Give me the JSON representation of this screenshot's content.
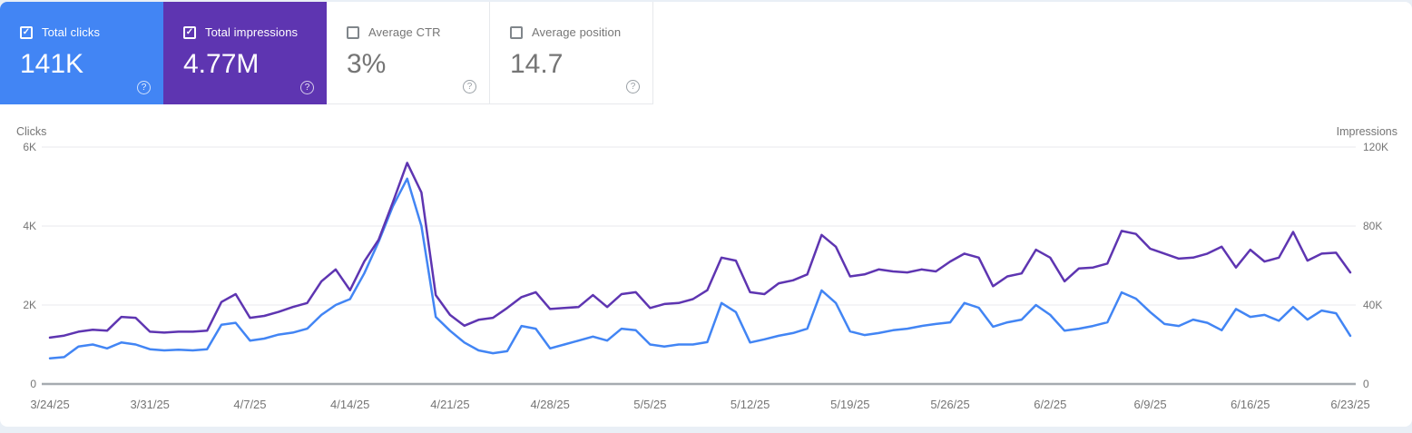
{
  "ui": {
    "help_glyph": "?",
    "check_glyph": "✓"
  },
  "page": {
    "background": "#e9eff6",
    "panel_background": "#ffffff"
  },
  "metric_cards": [
    {
      "id": "total-clicks",
      "label": "Total clicks",
      "value": "141K",
      "checked": true,
      "background": "#4285f4",
      "text_color": "#ffffff"
    },
    {
      "id": "total-impressions",
      "label": "Total impressions",
      "value": "4.77M",
      "checked": true,
      "background": "#5e35b1",
      "text_color": "#ffffff"
    },
    {
      "id": "average-ctr",
      "label": "Average CTR",
      "value": "3%",
      "checked": false,
      "background": "#ffffff",
      "text_color": "#757575"
    },
    {
      "id": "average-position",
      "label": "Average position",
      "value": "14.7",
      "checked": false,
      "background": "#ffffff",
      "text_color": "#757575"
    }
  ],
  "chart_data": {
    "type": "line",
    "grid": "horizontal",
    "grid_color": "#e8eaed",
    "axis_color": "#a6abb0",
    "tick_color": "#757575",
    "left_axis": {
      "label": "Clicks",
      "ticks": [
        "0",
        "2K",
        "4K",
        "6K"
      ],
      "max": 6000
    },
    "right_axis": {
      "label": "Impressions",
      "ticks": [
        "0",
        "40K",
        "80K",
        "120K"
      ],
      "max": 120000
    },
    "x_tick_every": 7,
    "x_tick_labels": [
      "3/24/25",
      "3/31/25",
      "4/7/25",
      "4/14/25",
      "4/21/25",
      "4/28/25",
      "5/5/25",
      "5/12/25",
      "5/19/25",
      "5/26/25",
      "6/2/25",
      "6/9/25",
      "6/16/25",
      "6/23/25"
    ],
    "x": [
      "3/24/25",
      "3/25/25",
      "3/26/25",
      "3/27/25",
      "3/28/25",
      "3/29/25",
      "3/30/25",
      "3/31/25",
      "4/1/25",
      "4/2/25",
      "4/3/25",
      "4/4/25",
      "4/5/25",
      "4/6/25",
      "4/7/25",
      "4/8/25",
      "4/9/25",
      "4/10/25",
      "4/11/25",
      "4/12/25",
      "4/13/25",
      "4/14/25",
      "4/15/25",
      "4/16/25",
      "4/17/25",
      "4/18/25",
      "4/19/25",
      "4/20/25",
      "4/21/25",
      "4/22/25",
      "4/23/25",
      "4/24/25",
      "4/25/25",
      "4/26/25",
      "4/27/25",
      "4/28/25",
      "4/29/25",
      "4/30/25",
      "5/1/25",
      "5/2/25",
      "5/3/25",
      "5/4/25",
      "5/5/25",
      "5/6/25",
      "5/7/25",
      "5/8/25",
      "5/9/25",
      "5/10/25",
      "5/11/25",
      "5/12/25",
      "5/13/25",
      "5/14/25",
      "5/15/25",
      "5/16/25",
      "5/17/25",
      "5/18/25",
      "5/19/25",
      "5/20/25",
      "5/21/25",
      "5/22/25",
      "5/23/25",
      "5/24/25",
      "5/25/25",
      "5/26/25",
      "5/27/25",
      "5/28/25",
      "5/29/25",
      "5/30/25",
      "5/31/25",
      "6/1/25",
      "6/2/25",
      "6/3/25",
      "6/4/25",
      "6/5/25",
      "6/6/25",
      "6/7/25",
      "6/8/25",
      "6/9/25",
      "6/10/25",
      "6/11/25",
      "6/12/25",
      "6/13/25",
      "6/14/25",
      "6/15/25",
      "6/16/25",
      "6/17/25",
      "6/18/25",
      "6/19/25",
      "6/20/25",
      "6/21/25",
      "6/22/25",
      "6/23/25"
    ],
    "series": [
      {
        "name": "Clicks",
        "axis": "left",
        "color": "#4285f4",
        "values": [
          650,
          680,
          950,
          1000,
          900,
          1050,
          1000,
          880,
          850,
          870,
          850,
          880,
          1500,
          1550,
          1100,
          1150,
          1250,
          1300,
          1400,
          1750,
          2000,
          2150,
          2800,
          3600,
          4500,
          5200,
          4000,
          1700,
          1350,
          1050,
          850,
          780,
          830,
          1470,
          1400,
          900,
          1000,
          1100,
          1200,
          1100,
          1400,
          1360,
          1000,
          950,
          1000,
          1000,
          1060,
          2050,
          1820,
          1050,
          1130,
          1220,
          1290,
          1400,
          2370,
          2050,
          1330,
          1240,
          1290,
          1360,
          1400,
          1470,
          1520,
          1560,
          2050,
          1930,
          1450,
          1560,
          1630,
          2000,
          1750,
          1350,
          1400,
          1470,
          1560,
          2320,
          2160,
          1820,
          1520,
          1470,
          1630,
          1550,
          1360,
          1900,
          1700,
          1750,
          1600,
          1950,
          1630,
          1860,
          1790,
          1220
        ]
      },
      {
        "name": "Impressions",
        "axis": "right",
        "color": "#5e35b1",
        "values": [
          23500,
          24500,
          26500,
          27500,
          27000,
          34000,
          33500,
          26500,
          26000,
          26500,
          26500,
          27000,
          41500,
          45500,
          33500,
          34500,
          36500,
          39000,
          41000,
          52000,
          58000,
          47500,
          62000,
          73000,
          92000,
          112000,
          97000,
          45000,
          35000,
          29500,
          32500,
          33500,
          38500,
          44000,
          46500,
          38000,
          38500,
          39000,
          45000,
          39000,
          45500,
          46500,
          38500,
          40500,
          41000,
          43000,
          47500,
          64000,
          62500,
          46500,
          45500,
          51000,
          52500,
          55500,
          75500,
          69500,
          54500,
          55500,
          58000,
          57000,
          56500,
          58000,
          57000,
          62000,
          66000,
          64000,
          49500,
          54500,
          56000,
          68000,
          64000,
          52000,
          58500,
          59000,
          61000,
          77500,
          76000,
          68500,
          66000,
          63500,
          64000,
          66000,
          69500,
          59000,
          68000,
          62000,
          64000,
          77000,
          62500,
          66000,
          66500,
          56500
        ]
      }
    ]
  }
}
